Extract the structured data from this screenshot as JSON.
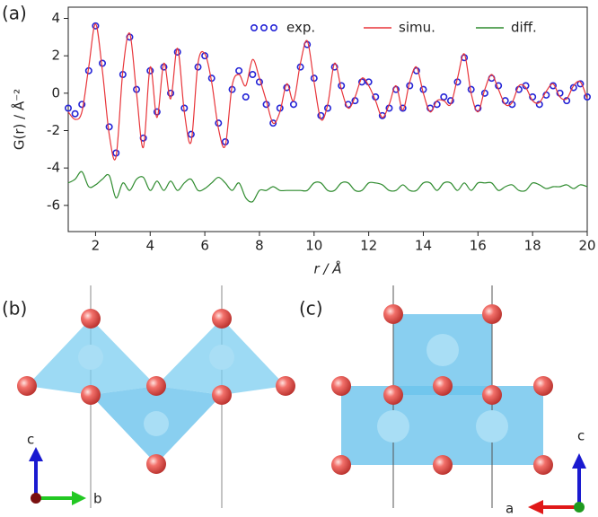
{
  "panel_labels": [
    "(a)",
    "(b)",
    "(c)"
  ],
  "chart_data": {
    "type": "line",
    "x_label": "r / Å",
    "y_label": "G(r) / Å⁻²",
    "x": [
      1,
      1.25,
      1.5,
      1.75,
      2,
      2.25,
      2.5,
      2.75,
      3,
      3.25,
      3.5,
      3.75,
      4,
      4.25,
      4.5,
      4.75,
      5,
      5.25,
      5.5,
      5.75,
      6,
      6.25,
      6.5,
      6.75,
      7,
      7.25,
      7.5,
      7.75,
      8,
      8.25,
      8.5,
      8.75,
      9,
      9.25,
      9.5,
      9.75,
      10,
      10.25,
      10.5,
      10.75,
      11,
      11.25,
      11.5,
      11.75,
      12,
      12.25,
      12.5,
      12.75,
      13,
      13.25,
      13.5,
      13.75,
      14,
      14.25,
      14.5,
      14.75,
      15,
      15.25,
      15.5,
      15.75,
      16,
      16.25,
      16.5,
      16.75,
      17,
      17.25,
      17.5,
      17.75,
      18,
      18.25,
      18.5,
      18.75,
      19,
      19.25,
      19.5,
      19.75,
      20
    ],
    "series": [
      {
        "name": "exp.",
        "color": "#2424d6",
        "marker": "circle",
        "values": [
          -0.8,
          -1.1,
          -0.6,
          1.2,
          3.6,
          1.6,
          -1.8,
          -3.2,
          1.0,
          3.0,
          0.2,
          -2.4,
          1.2,
          -1.0,
          1.4,
          0.0,
          2.2,
          -0.8,
          -2.2,
          1.4,
          2.0,
          0.8,
          -1.6,
          -2.6,
          0.2,
          1.2,
          -0.2,
          1.0,
          0.6,
          -0.6,
          -1.6,
          -0.8,
          0.3,
          -0.6,
          1.4,
          2.6,
          0.8,
          -1.2,
          -0.8,
          1.4,
          0.4,
          -0.6,
          -0.4,
          0.6,
          0.6,
          -0.2,
          -1.2,
          -0.8,
          0.2,
          -0.8,
          0.4,
          1.2,
          0.2,
          -0.8,
          -0.6,
          -0.2,
          -0.4,
          0.6,
          1.9,
          0.2,
          -0.8,
          0.0,
          0.8,
          0.4,
          -0.4,
          -0.6,
          0.2,
          0.4,
          -0.2,
          -0.6,
          -0.1,
          0.4,
          0.0,
          -0.4,
          0.3,
          0.5,
          -0.2
        ]
      },
      {
        "name": "simu.",
        "color": "#e8353a",
        "marker": "line",
        "values": [
          -1.0,
          -1.4,
          -1.0,
          1.4,
          3.7,
          1.2,
          -2.2,
          -3.4,
          1.2,
          3.2,
          0.0,
          -2.9,
          1.4,
          -1.3,
          1.6,
          -0.3,
          2.4,
          -1.0,
          -2.6,
          1.6,
          2.1,
          0.6,
          -1.9,
          -2.8,
          0.4,
          1.0,
          0.4,
          1.8,
          0.8,
          -0.4,
          -1.6,
          -1.0,
          0.5,
          -0.4,
          1.6,
          2.8,
          0.6,
          -1.4,
          -0.6,
          1.6,
          0.2,
          -0.8,
          -0.2,
          0.8,
          0.4,
          -0.4,
          -1.3,
          -0.6,
          0.4,
          -0.9,
          0.6,
          1.4,
          0.0,
          -1.0,
          -0.4,
          -0.4,
          -0.6,
          0.8,
          2.1,
          0.0,
          -1.0,
          0.2,
          1.0,
          0.2,
          -0.6,
          -0.5,
          0.4,
          0.3,
          -0.4,
          -0.5,
          0.1,
          0.5,
          -0.2,
          -0.3,
          0.4,
          0.6,
          -0.3
        ]
      },
      {
        "name": "diff.",
        "color": "#2e8b2e",
        "marker": "line",
        "values": [
          -4.8,
          -4.6,
          -4.2,
          -5.0,
          -4.9,
          -4.6,
          -4.4,
          -5.6,
          -4.8,
          -5.2,
          -4.6,
          -4.5,
          -5.2,
          -4.7,
          -5.2,
          -4.7,
          -5.2,
          -4.8,
          -4.6,
          -5.2,
          -5.1,
          -4.8,
          -4.5,
          -4.8,
          -5.2,
          -4.8,
          -5.6,
          -5.8,
          -5.2,
          -5.2,
          -5.0,
          -5.2,
          -5.2,
          -5.2,
          -5.2,
          -5.2,
          -4.8,
          -4.8,
          -5.2,
          -5.2,
          -4.8,
          -4.8,
          -5.2,
          -5.2,
          -4.8,
          -4.8,
          -4.9,
          -5.2,
          -5.2,
          -4.9,
          -5.2,
          -5.2,
          -4.8,
          -4.8,
          -5.2,
          -4.8,
          -4.8,
          -5.2,
          -4.8,
          -5.2,
          -4.8,
          -4.8,
          -4.8,
          -5.2,
          -5.0,
          -4.9,
          -5.2,
          -5.2,
          -4.8,
          -4.9,
          -5.1,
          -5.0,
          -5.0,
          -4.9,
          -5.1,
          -4.9,
          -5.0
        ]
      }
    ],
    "xlim": [
      1,
      20
    ],
    "xticks": [
      2,
      4,
      6,
      8,
      10,
      12,
      14,
      16,
      18,
      20
    ],
    "ylim": [
      -7.4,
      4.6
    ],
    "yticks": [
      -6,
      -4,
      -2,
      0,
      2,
      4
    ],
    "legend": "top",
    "grid": false
  },
  "structure_b": {
    "axes": [
      "c",
      "b"
    ]
  },
  "structure_c": {
    "axes": [
      "c",
      "a"
    ]
  }
}
